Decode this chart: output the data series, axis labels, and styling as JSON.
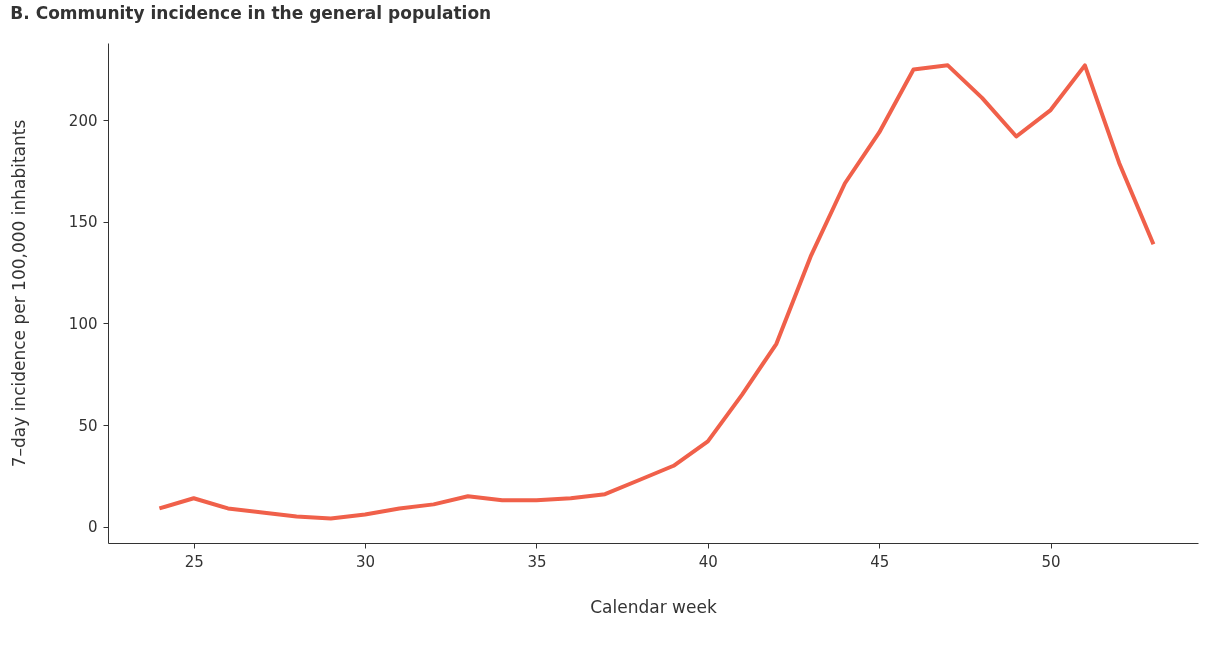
{
  "chart_data": {
    "type": "line",
    "title": "B. Community incidence in the general population",
    "xlabel": "Calendar week",
    "ylabel": "7–day incidence per 100,000 inhabitants",
    "x": [
      24,
      25,
      26,
      27,
      28,
      29,
      30,
      31,
      32,
      33,
      34,
      35,
      36,
      37,
      38,
      39,
      40,
      41,
      42,
      43,
      44,
      45,
      46,
      47,
      48,
      49,
      50,
      51,
      52,
      53
    ],
    "series": [
      {
        "color": "#f0604a",
        "values": [
          9,
          14,
          9,
          7,
          5,
          4,
          6,
          9,
          11,
          15,
          13,
          13,
          14,
          16,
          23,
          30,
          42,
          65,
          90,
          133,
          169,
          194,
          225,
          227,
          211,
          192,
          205,
          227,
          179,
          139
        ]
      }
    ],
    "xlim": [
      22.5,
      54.3
    ],
    "ylim": [
      -8,
      238
    ],
    "xticks": [
      25,
      30,
      35,
      40,
      45,
      50
    ],
    "yticks": [
      0,
      50,
      100,
      150,
      200
    ],
    "grid": false,
    "legend": false,
    "marker": "none",
    "line_style": "solid"
  }
}
